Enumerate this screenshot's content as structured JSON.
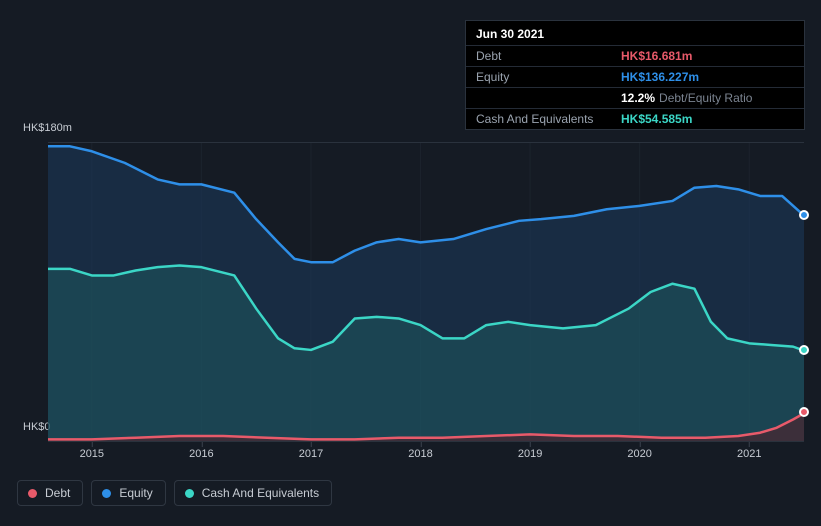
{
  "tooltip": {
    "date": "Jun 30 2021",
    "debt": {
      "label": "Debt",
      "value": "HK$16.681m"
    },
    "equity": {
      "label": "Equity",
      "value": "HK$136.227m"
    },
    "ratio": {
      "pct": "12.2%",
      "label": "Debt/Equity Ratio"
    },
    "cash": {
      "label": "Cash And Equivalents",
      "value": "HK$54.585m"
    }
  },
  "yaxis": {
    "top_label": "HK$180m",
    "bot_label": "HK$0",
    "min": 0,
    "max": 180
  },
  "xaxis": {
    "start_year": 2014.6,
    "end_year": 2021.5,
    "ticks": [
      2015,
      2016,
      2017,
      2018,
      2019,
      2020,
      2021
    ],
    "tick_labels": [
      "2015",
      "2016",
      "2017",
      "2018",
      "2019",
      "2020",
      "2021"
    ]
  },
  "colors": {
    "background": "#151b24",
    "grid": "#2a323d",
    "debt_line": "#e85a6a",
    "debt_fill": "#4a2630",
    "equity_line": "#2e8fe8",
    "equity_fill": "#1c3a5d",
    "cash_line": "#3bd6c6",
    "cash_fill": "#1f5a5e",
    "tick_text": "#c7ccd3"
  },
  "series": {
    "equity": {
      "label": "Equity",
      "points": [
        [
          2014.6,
          178
        ],
        [
          2014.8,
          178
        ],
        [
          2015.0,
          175
        ],
        [
          2015.3,
          168
        ],
        [
          2015.6,
          158
        ],
        [
          2015.8,
          155
        ],
        [
          2016.0,
          155
        ],
        [
          2016.3,
          150
        ],
        [
          2016.5,
          134
        ],
        [
          2016.7,
          120
        ],
        [
          2016.85,
          110
        ],
        [
          2017.0,
          108
        ],
        [
          2017.2,
          108
        ],
        [
          2017.4,
          115
        ],
        [
          2017.6,
          120
        ],
        [
          2017.8,
          122
        ],
        [
          2018.0,
          120
        ],
        [
          2018.3,
          122
        ],
        [
          2018.6,
          128
        ],
        [
          2018.9,
          133
        ],
        [
          2019.1,
          134
        ],
        [
          2019.4,
          136
        ],
        [
          2019.7,
          140
        ],
        [
          2020.0,
          142
        ],
        [
          2020.3,
          145
        ],
        [
          2020.5,
          153
        ],
        [
          2020.7,
          154
        ],
        [
          2020.9,
          152
        ],
        [
          2021.1,
          148
        ],
        [
          2021.3,
          148
        ],
        [
          2021.5,
          136.2
        ]
      ]
    },
    "cash": {
      "label": "Cash And Equivalents",
      "points": [
        [
          2014.6,
          104
        ],
        [
          2014.8,
          104
        ],
        [
          2015.0,
          100
        ],
        [
          2015.2,
          100
        ],
        [
          2015.4,
          103
        ],
        [
          2015.6,
          105
        ],
        [
          2015.8,
          106
        ],
        [
          2016.0,
          105
        ],
        [
          2016.3,
          100
        ],
        [
          2016.5,
          80
        ],
        [
          2016.7,
          62
        ],
        [
          2016.85,
          56
        ],
        [
          2017.0,
          55
        ],
        [
          2017.2,
          60
        ],
        [
          2017.4,
          74
        ],
        [
          2017.6,
          75
        ],
        [
          2017.8,
          74
        ],
        [
          2018.0,
          70
        ],
        [
          2018.2,
          62
        ],
        [
          2018.4,
          62
        ],
        [
          2018.6,
          70
        ],
        [
          2018.8,
          72
        ],
        [
          2019.0,
          70
        ],
        [
          2019.3,
          68
        ],
        [
          2019.6,
          70
        ],
        [
          2019.9,
          80
        ],
        [
          2020.1,
          90
        ],
        [
          2020.3,
          95
        ],
        [
          2020.5,
          92
        ],
        [
          2020.65,
          72
        ],
        [
          2020.8,
          62
        ],
        [
          2021.0,
          59
        ],
        [
          2021.2,
          58
        ],
        [
          2021.4,
          57
        ],
        [
          2021.5,
          54.6
        ]
      ]
    },
    "debt": {
      "label": "Debt",
      "points": [
        [
          2014.6,
          1
        ],
        [
          2015.0,
          1
        ],
        [
          2015.4,
          2
        ],
        [
          2015.8,
          3
        ],
        [
          2016.2,
          3
        ],
        [
          2016.6,
          2
        ],
        [
          2017.0,
          1
        ],
        [
          2017.4,
          1
        ],
        [
          2017.8,
          2
        ],
        [
          2018.2,
          2
        ],
        [
          2018.6,
          3
        ],
        [
          2019.0,
          4
        ],
        [
          2019.4,
          3
        ],
        [
          2019.8,
          3
        ],
        [
          2020.2,
          2
        ],
        [
          2020.6,
          2
        ],
        [
          2020.9,
          3
        ],
        [
          2021.1,
          5
        ],
        [
          2021.25,
          8
        ],
        [
          2021.4,
          13
        ],
        [
          2021.5,
          16.7
        ]
      ]
    }
  },
  "legend": [
    {
      "label": "Debt",
      "color": "#e85a6a"
    },
    {
      "label": "Equity",
      "color": "#2e8fe8"
    },
    {
      "label": "Cash And Equivalents",
      "color": "#3bd6c6"
    }
  ],
  "plot_style": {
    "line_width": 2.5,
    "fill_opacity": 0.55,
    "marker_radius": 5
  }
}
